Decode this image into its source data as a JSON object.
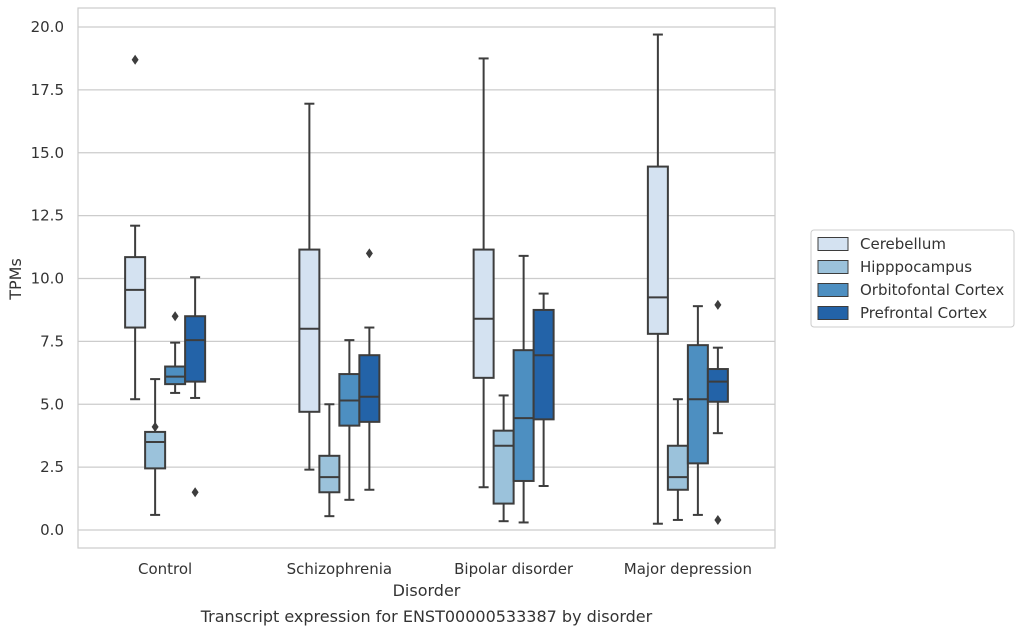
{
  "chart_data": {
    "type": "box",
    "xlabel": "Disorder",
    "ylabel": "TPMs",
    "caption": "Transcript expression for ENST00000533387 by disorder",
    "ylim": [
      -0.7,
      20.7
    ],
    "yticks": [
      "0.0",
      "2.5",
      "5.0",
      "7.5",
      "10.0",
      "12.5",
      "15.0",
      "17.5",
      "20.0"
    ],
    "grid": "horizontal",
    "legend_position": "right",
    "categories": [
      "Control",
      "Schizophrenia",
      "Bipolar disorder",
      "Major depression"
    ],
    "series": [
      {
        "name": "Cerebellum",
        "color": "#d4e2f1",
        "boxes": [
          {
            "whislo": 5.2,
            "q1": 8.05,
            "med": 9.55,
            "q3": 10.85,
            "whishi": 12.1,
            "fliers": [
              18.7
            ]
          },
          {
            "whislo": 2.4,
            "q1": 4.7,
            "med": 8.0,
            "q3": 11.15,
            "whishi": 16.95,
            "fliers": []
          },
          {
            "whislo": 1.7,
            "q1": 6.05,
            "med": 8.4,
            "q3": 11.15,
            "whishi": 18.75,
            "fliers": []
          },
          {
            "whislo": 0.25,
            "q1": 7.8,
            "med": 9.25,
            "q3": 14.45,
            "whishi": 19.7,
            "fliers": []
          }
        ]
      },
      {
        "name": "Hipppocampus",
        "color": "#9bc2db",
        "boxes": [
          {
            "whislo": 0.6,
            "q1": 2.45,
            "med": 3.5,
            "q3": 3.9,
            "whishi": 6.0,
            "fliers": [
              4.1
            ]
          },
          {
            "whislo": 0.55,
            "q1": 1.5,
            "med": 2.1,
            "q3": 2.95,
            "whishi": 5.0,
            "fliers": []
          },
          {
            "whislo": 0.35,
            "q1": 1.05,
            "med": 3.35,
            "q3": 3.95,
            "whishi": 5.35,
            "fliers": []
          },
          {
            "whislo": 0.4,
            "q1": 1.6,
            "med": 2.1,
            "q3": 3.35,
            "whishi": 5.2,
            "fliers": []
          }
        ]
      },
      {
        "name": "Orbitofontal Cortex",
        "color": "#4d8fc1",
        "boxes": [
          {
            "whislo": 5.45,
            "q1": 5.8,
            "med": 6.1,
            "q3": 6.5,
            "whishi": 7.45,
            "fliers": [
              8.5
            ]
          },
          {
            "whislo": 1.2,
            "q1": 4.15,
            "med": 5.15,
            "q3": 6.2,
            "whishi": 7.55,
            "fliers": []
          },
          {
            "whislo": 0.3,
            "q1": 1.95,
            "med": 4.45,
            "q3": 7.15,
            "whishi": 10.9,
            "fliers": []
          },
          {
            "whislo": 0.6,
            "q1": 2.65,
            "med": 5.2,
            "q3": 7.35,
            "whishi": 8.9,
            "fliers": []
          }
        ]
      },
      {
        "name": "Prefrontal Cortex",
        "color": "#2363a8",
        "boxes": [
          {
            "whislo": 5.25,
            "q1": 5.9,
            "med": 7.55,
            "q3": 8.5,
            "whishi": 10.05,
            "fliers": [
              1.5
            ]
          },
          {
            "whislo": 1.6,
            "q1": 4.3,
            "med": 5.3,
            "q3": 6.95,
            "whishi": 8.05,
            "fliers": [
              11.0
            ]
          },
          {
            "whislo": 1.75,
            "q1": 4.4,
            "med": 6.95,
            "q3": 8.75,
            "whishi": 9.4,
            "fliers": []
          },
          {
            "whislo": 3.85,
            "q1": 5.1,
            "med": 5.9,
            "q3": 6.4,
            "whishi": 7.25,
            "fliers": [
              8.95,
              0.4
            ]
          }
        ]
      }
    ]
  }
}
